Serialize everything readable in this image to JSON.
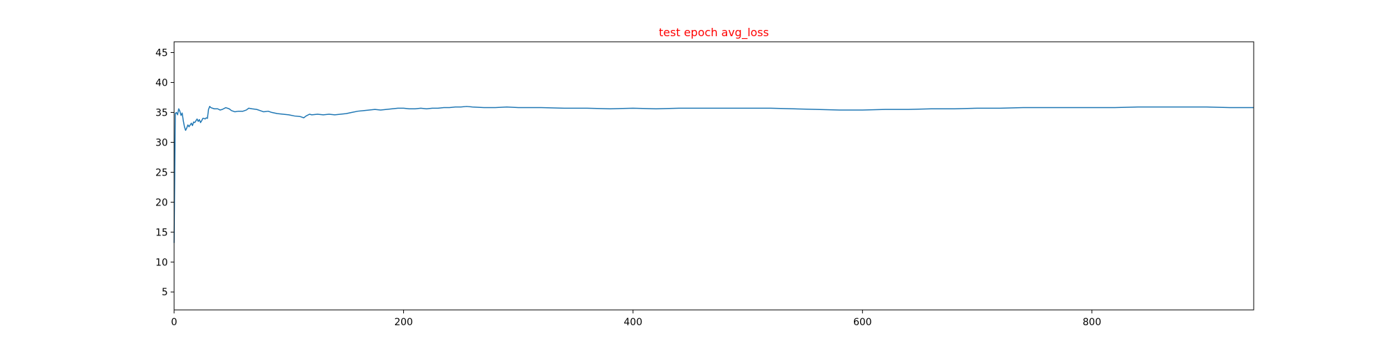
{
  "chart_data": {
    "type": "line",
    "title": "test epoch avg_loss",
    "title_color": "#ff0000",
    "xlabel": "",
    "ylabel": "",
    "xlim": [
      0,
      941
    ],
    "ylim": [
      2.0,
      46.8
    ],
    "x_ticks": [
      0,
      200,
      400,
      600,
      800
    ],
    "y_ticks": [
      5,
      10,
      15,
      20,
      25,
      30,
      35,
      40,
      45
    ],
    "grid": false,
    "legend": "none",
    "series": [
      {
        "color": "#1f77b4",
        "points": [
          [
            0,
            13.2
          ],
          [
            1,
            34.8
          ],
          [
            2,
            35.0
          ],
          [
            3,
            34.6
          ],
          [
            4,
            35.6
          ],
          [
            5,
            35.2
          ],
          [
            6,
            34.5
          ],
          [
            7,
            34.9
          ],
          [
            8,
            33.6
          ],
          [
            9,
            32.6
          ],
          [
            10,
            32.0
          ],
          [
            11,
            32.4
          ],
          [
            12,
            32.9
          ],
          [
            13,
            32.6
          ],
          [
            14,
            32.9
          ],
          [
            15,
            33.2
          ],
          [
            16,
            32.8
          ],
          [
            17,
            33.4
          ],
          [
            18,
            33.3
          ],
          [
            19,
            33.6
          ],
          [
            20,
            33.9
          ],
          [
            21,
            33.5
          ],
          [
            22,
            33.8
          ],
          [
            23,
            33.3
          ],
          [
            24,
            33.6
          ],
          [
            25,
            34.0
          ],
          [
            26,
            34.0
          ],
          [
            27,
            33.9
          ],
          [
            28,
            34.1
          ],
          [
            29,
            34.0
          ],
          [
            30,
            35.5
          ],
          [
            31,
            36.0
          ],
          [
            32,
            35.8
          ],
          [
            35,
            35.6
          ],
          [
            38,
            35.6
          ],
          [
            40,
            35.4
          ],
          [
            42,
            35.5
          ],
          [
            45,
            35.8
          ],
          [
            48,
            35.6
          ],
          [
            50,
            35.3
          ],
          [
            53,
            35.1
          ],
          [
            56,
            35.2
          ],
          [
            60,
            35.2
          ],
          [
            63,
            35.4
          ],
          [
            65,
            35.7
          ],
          [
            68,
            35.6
          ],
          [
            72,
            35.5
          ],
          [
            75,
            35.3
          ],
          [
            78,
            35.1
          ],
          [
            82,
            35.2
          ],
          [
            85,
            35.0
          ],
          [
            90,
            34.8
          ],
          [
            95,
            34.7
          ],
          [
            100,
            34.6
          ],
          [
            105,
            34.4
          ],
          [
            110,
            34.3
          ],
          [
            113,
            34.1
          ],
          [
            115,
            34.4
          ],
          [
            118,
            34.7
          ],
          [
            120,
            34.6
          ],
          [
            125,
            34.7
          ],
          [
            130,
            34.6
          ],
          [
            135,
            34.7
          ],
          [
            140,
            34.6
          ],
          [
            145,
            34.7
          ],
          [
            150,
            34.8
          ],
          [
            155,
            35.0
          ],
          [
            160,
            35.2
          ],
          [
            165,
            35.3
          ],
          [
            170,
            35.4
          ],
          [
            175,
            35.5
          ],
          [
            180,
            35.4
          ],
          [
            185,
            35.5
          ],
          [
            190,
            35.6
          ],
          [
            195,
            35.7
          ],
          [
            200,
            35.7
          ],
          [
            205,
            35.6
          ],
          [
            210,
            35.6
          ],
          [
            215,
            35.7
          ],
          [
            220,
            35.6
          ],
          [
            225,
            35.7
          ],
          [
            230,
            35.7
          ],
          [
            235,
            35.8
          ],
          [
            240,
            35.8
          ],
          [
            245,
            35.9
          ],
          [
            250,
            35.9
          ],
          [
            255,
            36.0
          ],
          [
            260,
            35.9
          ],
          [
            270,
            35.8
          ],
          [
            280,
            35.8
          ],
          [
            290,
            35.9
          ],
          [
            300,
            35.8
          ],
          [
            320,
            35.8
          ],
          [
            340,
            35.7
          ],
          [
            360,
            35.7
          ],
          [
            380,
            35.6
          ],
          [
            400,
            35.7
          ],
          [
            420,
            35.6
          ],
          [
            440,
            35.7
          ],
          [
            460,
            35.7
          ],
          [
            480,
            35.7
          ],
          [
            500,
            35.7
          ],
          [
            520,
            35.7
          ],
          [
            540,
            35.6
          ],
          [
            560,
            35.5
          ],
          [
            580,
            35.4
          ],
          [
            600,
            35.4
          ],
          [
            620,
            35.5
          ],
          [
            640,
            35.5
          ],
          [
            660,
            35.6
          ],
          [
            680,
            35.6
          ],
          [
            700,
            35.7
          ],
          [
            720,
            35.7
          ],
          [
            740,
            35.8
          ],
          [
            760,
            35.8
          ],
          [
            780,
            35.8
          ],
          [
            800,
            35.8
          ],
          [
            820,
            35.8
          ],
          [
            840,
            35.9
          ],
          [
            860,
            35.9
          ],
          [
            880,
            35.9
          ],
          [
            900,
            35.9
          ],
          [
            920,
            35.8
          ],
          [
            941,
            35.8
          ]
        ]
      }
    ]
  }
}
